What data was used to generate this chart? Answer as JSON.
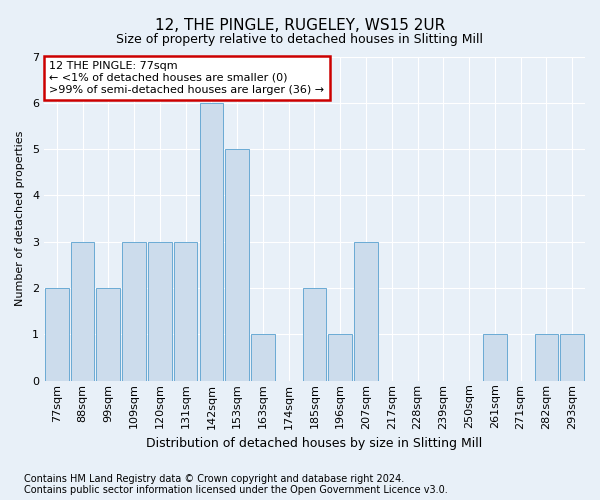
{
  "title": "12, THE PINGLE, RUGELEY, WS15 2UR",
  "subtitle": "Size of property relative to detached houses in Slitting Mill",
  "xlabel": "Distribution of detached houses by size in Slitting Mill",
  "ylabel": "Number of detached properties",
  "footnote1": "Contains HM Land Registry data © Crown copyright and database right 2024.",
  "footnote2": "Contains public sector information licensed under the Open Government Licence v3.0.",
  "categories": [
    "77sqm",
    "88sqm",
    "99sqm",
    "109sqm",
    "120sqm",
    "131sqm",
    "142sqm",
    "153sqm",
    "163sqm",
    "174sqm",
    "185sqm",
    "196sqm",
    "207sqm",
    "217sqm",
    "228sqm",
    "239sqm",
    "250sqm",
    "261sqm",
    "271sqm",
    "282sqm",
    "293sqm"
  ],
  "values": [
    2,
    3,
    2,
    3,
    3,
    3,
    6,
    5,
    1,
    0,
    2,
    1,
    3,
    0,
    0,
    0,
    0,
    1,
    0,
    1,
    1
  ],
  "bar_color": "#ccdcec",
  "bar_edge_color": "#6aaad4",
  "background_color": "#e8f0f8",
  "annotation_text": "12 THE PINGLE: 77sqm\n← <1% of detached houses are smaller (0)\n>99% of semi-detached houses are larger (36) →",
  "annotation_box_color": "white",
  "annotation_box_edge": "#cc0000",
  "ylim": [
    0,
    7
  ],
  "yticks": [
    0,
    1,
    2,
    3,
    4,
    5,
    6,
    7
  ],
  "title_fontsize": 11,
  "subtitle_fontsize": 9,
  "ylabel_fontsize": 8,
  "xlabel_fontsize": 9,
  "tick_fontsize": 8,
  "annot_fontsize": 8,
  "footnote_fontsize": 7
}
